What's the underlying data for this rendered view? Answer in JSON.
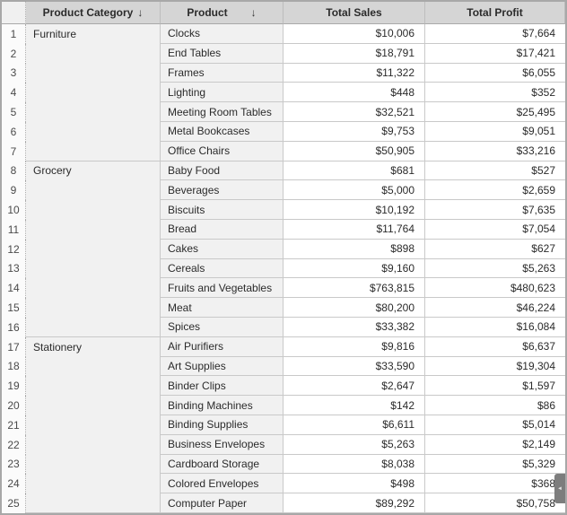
{
  "header": {
    "category_label": "Product Category",
    "product_label": "Product",
    "sales_label": "Total Sales",
    "profit_label": "Total Profit",
    "sort_arrow": "↓"
  },
  "scroll_tab_arrow": "◄",
  "colors": {
    "frame": "#a8a8a8",
    "header_bg": "#d5d5d5",
    "label_bg": "#f1f1f1",
    "value_bg": "#ffffff",
    "grid_line": "#c9c9c9",
    "tab_bg": "#7d7d7d"
  },
  "rows": [
    {
      "n": "1",
      "category": "Furniture",
      "product": "Clocks",
      "sales": "$10,006",
      "profit": "$7,664"
    },
    {
      "n": "2",
      "category": "",
      "product": "End Tables",
      "sales": "$18,791",
      "profit": "$17,421"
    },
    {
      "n": "3",
      "category": "",
      "product": "Frames",
      "sales": "$11,322",
      "profit": "$6,055"
    },
    {
      "n": "4",
      "category": "",
      "product": "Lighting",
      "sales": "$448",
      "profit": "$352"
    },
    {
      "n": "5",
      "category": "",
      "product": "Meeting Room Tables",
      "sales": "$32,521",
      "profit": "$25,495"
    },
    {
      "n": "6",
      "category": "",
      "product": "Metal Bookcases",
      "sales": "$9,753",
      "profit": "$9,051"
    },
    {
      "n": "7",
      "category": "",
      "product": "Office Chairs",
      "sales": "$50,905",
      "profit": "$33,216"
    },
    {
      "n": "8",
      "category": "Grocery",
      "product": "Baby Food",
      "sales": "$681",
      "profit": "$527"
    },
    {
      "n": "9",
      "category": "",
      "product": "Beverages",
      "sales": "$5,000",
      "profit": "$2,659"
    },
    {
      "n": "10",
      "category": "",
      "product": "Biscuits",
      "sales": "$10,192",
      "profit": "$7,635"
    },
    {
      "n": "11",
      "category": "",
      "product": "Bread",
      "sales": "$11,764",
      "profit": "$7,054"
    },
    {
      "n": "12",
      "category": "",
      "product": "Cakes",
      "sales": "$898",
      "profit": "$627"
    },
    {
      "n": "13",
      "category": "",
      "product": "Cereals",
      "sales": "$9,160",
      "profit": "$5,263"
    },
    {
      "n": "14",
      "category": "",
      "product": "Fruits and Vegetables",
      "sales": "$763,815",
      "profit": "$480,623"
    },
    {
      "n": "15",
      "category": "",
      "product": "Meat",
      "sales": "$80,200",
      "profit": "$46,224"
    },
    {
      "n": "16",
      "category": "",
      "product": "Spices",
      "sales": "$33,382",
      "profit": "$16,084"
    },
    {
      "n": "17",
      "category": "Stationery",
      "product": "Air Purifiers",
      "sales": "$9,816",
      "profit": "$6,637"
    },
    {
      "n": "18",
      "category": "",
      "product": "Art Supplies",
      "sales": "$33,590",
      "profit": "$19,304"
    },
    {
      "n": "19",
      "category": "",
      "product": "Binder Clips",
      "sales": "$2,647",
      "profit": "$1,597"
    },
    {
      "n": "20",
      "category": "",
      "product": "Binding Machines",
      "sales": "$142",
      "profit": "$86"
    },
    {
      "n": "21",
      "category": "",
      "product": "Binding Supplies",
      "sales": "$6,611",
      "profit": "$5,014"
    },
    {
      "n": "22",
      "category": "",
      "product": "Business Envelopes",
      "sales": "$5,263",
      "profit": "$2,149"
    },
    {
      "n": "23",
      "category": "",
      "product": "Cardboard Storage",
      "sales": "$8,038",
      "profit": "$5,329"
    },
    {
      "n": "24",
      "category": "",
      "product": "Colored Envelopes",
      "sales": "$498",
      "profit": "$368"
    },
    {
      "n": "25",
      "category": "",
      "product": "Computer Paper",
      "sales": "$89,292",
      "profit": "$50,758"
    }
  ]
}
